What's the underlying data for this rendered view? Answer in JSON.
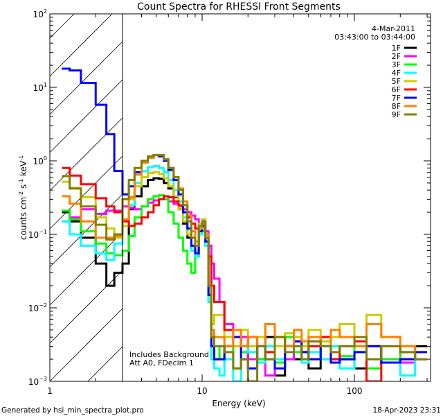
{
  "chart_data": {
    "type": "line",
    "title": "Count Spectra for RHESSI Front Segments",
    "xlabel": "Energy (keV)",
    "ylabel": "counts cm-2 s-1 keV-1",
    "ylabel_parts": [
      "counts cm",
      "-2",
      " s",
      "-1",
      " keV",
      "-1"
    ],
    "xscale": "log",
    "yscale": "log",
    "xlim": [
      1,
      316
    ],
    "ylim": [
      0.001,
      100
    ],
    "xticks": [
      {
        "value": 1,
        "label": "1"
      },
      {
        "value": 10,
        "label": "10"
      },
      {
        "value": 100,
        "label": "100"
      }
    ],
    "yticks": [
      {
        "value": 100,
        "base": "10",
        "exp": "2"
      },
      {
        "value": 10,
        "base": "10",
        "exp": "1"
      },
      {
        "value": 1,
        "base": "10",
        "exp": "0"
      },
      {
        "value": 0.1,
        "base": "10",
        "exp": "−1"
      },
      {
        "value": 0.01,
        "base": "10",
        "exp": "−2"
      },
      {
        "value": 0.001,
        "base": "10",
        "exp": "−3"
      }
    ],
    "legend_position": "top-right",
    "date": "4-Mar-2011",
    "time_range": "03:43:00 to 03:44:00",
    "hatched_region_keV": [
      1,
      3
    ],
    "annotations": [
      "Includes Background",
      "Att A0, FDecim 1"
    ],
    "energy_edges": [
      1.2,
      1.35,
      1.6,
      2.0,
      2.35,
      2.65,
      3.0,
      3.3,
      3.6,
      4.0,
      4.4,
      4.8,
      5.2,
      5.6,
      6.0,
      6.5,
      7.0,
      7.5,
      8.0,
      8.5,
      9.0,
      9.5,
      10,
      10.5,
      11,
      11.5,
      12,
      13,
      14,
      16,
      18,
      20,
      23,
      26,
      30,
      35,
      40,
      45,
      50,
      60,
      70,
      80,
      100,
      120,
      150,
      200,
      250,
      300
    ],
    "series": [
      {
        "name": "1F",
        "color": "#000000",
        "values": [
          0.2,
          0.15,
          0.09,
          0.04,
          0.02,
          0.03,
          0.04,
          0.22,
          0.33,
          0.45,
          0.55,
          0.58,
          0.57,
          0.5,
          0.42,
          0.32,
          0.22,
          0.14,
          0.09,
          0.06,
          0.05,
          0.1,
          0.12,
          0.08,
          0.015,
          0.003,
          0.002,
          0.002,
          0.003,
          0.0015,
          0.002,
          0.003,
          0.002,
          0.004,
          0.0012,
          0.003,
          0.002,
          0.0025,
          0.0015,
          0.003,
          0.002,
          0.002,
          0.0015,
          0.003,
          0.0018,
          0.002,
          0.003
        ]
      },
      {
        "name": "2F",
        "color": "#ff00ff",
        "values": [
          0.15,
          0.17,
          0.22,
          0.19,
          0.21,
          0.21,
          0.24,
          0.23,
          0.22,
          0.24,
          0.27,
          0.29,
          0.3,
          0.3,
          0.28,
          0.26,
          0.24,
          0.22,
          0.2,
          0.18,
          0.16,
          0.14,
          0.13,
          0.11,
          0.07,
          0.04,
          0.025,
          0.012,
          0.006,
          0.003,
          0.004,
          0.002,
          0.003,
          0.0012,
          0.004,
          0.002,
          0.003,
          0.002,
          0.0035,
          0.002,
          0.003,
          0.002,
          0.0025,
          0.003,
          0.002,
          0.0018,
          0.002
        ]
      },
      {
        "name": "3F",
        "color": "#00ff00",
        "values": [
          0.21,
          0.16,
          0.11,
          0.075,
          0.055,
          0.052,
          0.06,
          0.095,
          0.17,
          0.24,
          0.3,
          0.33,
          0.34,
          0.3,
          0.2,
          0.14,
          0.09,
          0.06,
          0.04,
          0.03,
          0.06,
          0.1,
          0.11,
          0.07,
          0.012,
          0.003,
          0.002,
          0.003,
          0.002,
          0.004,
          0.0025,
          0.003,
          0.002,
          0.003,
          0.0018,
          0.004,
          0.0025,
          0.003,
          0.002,
          0.0035,
          0.003,
          0.0022,
          0.003,
          0.0015,
          0.002,
          0.003,
          0.0025
        ]
      },
      {
        "name": "4F",
        "color": "#00ffff",
        "values": [
          0.15,
          0.1,
          0.07,
          0.055,
          0.045,
          0.075,
          0.13,
          0.25,
          0.5,
          0.72,
          0.82,
          0.85,
          0.8,
          0.7,
          0.55,
          0.4,
          0.28,
          0.17,
          0.1,
          0.06,
          0.05,
          0.1,
          0.12,
          0.07,
          0.012,
          0.002,
          0.0015,
          0.0012,
          0.002,
          0.001,
          0.003,
          0.0025,
          0.0018,
          0.003,
          0.002,
          0.0025,
          0.003,
          0.0018,
          0.0025,
          0.002,
          0.003,
          0.0015,
          0.0025,
          0.002,
          0.0018,
          0.0012,
          0.002
        ]
      },
      {
        "name": "5F",
        "color": "#cccc00",
        "values": [
          0.52,
          0.43,
          0.32,
          0.17,
          0.12,
          0.09,
          0.13,
          0.3,
          0.45,
          0.6,
          0.68,
          0.7,
          0.66,
          0.58,
          0.45,
          0.33,
          0.22,
          0.15,
          0.1,
          0.07,
          0.06,
          0.14,
          0.16,
          0.1,
          0.02,
          0.006,
          0.008,
          0.008,
          0.004,
          0.003,
          0.005,
          0.003,
          0.004,
          0.006,
          0.003,
          0.0045,
          0.004,
          0.003,
          0.005,
          0.0035,
          0.004,
          0.006,
          0.003,
          0.008,
          0.004,
          0.003,
          0.0025
        ]
      },
      {
        "name": "6F",
        "color": "#ff0000",
        "values": [
          0.8,
          0.63,
          0.48,
          0.31,
          0.24,
          0.2,
          0.15,
          0.13,
          0.14,
          0.17,
          0.2,
          0.25,
          0.3,
          0.33,
          0.32,
          0.28,
          0.25,
          0.2,
          0.17,
          0.14,
          0.12,
          0.12,
          0.14,
          0.1,
          0.05,
          0.02,
          0.012,
          0.012,
          0.005,
          0.004,
          0.003,
          0.004,
          0.003,
          0.0025,
          0.004,
          0.003,
          0.0035,
          0.0025,
          0.003,
          0.004,
          0.002,
          0.003,
          0.0035,
          0.001,
          0.003,
          0.0025,
          0.002
        ]
      },
      {
        "name": "7F",
        "color": "#0000ff",
        "values": [
          18,
          17,
          11.5,
          5.8,
          2.3,
          0.73,
          0.35,
          0.45,
          0.7,
          0.95,
          1.1,
          1.2,
          1.15,
          1.0,
          0.75,
          0.55,
          0.35,
          0.2,
          0.12,
          0.07,
          0.055,
          0.11,
          0.13,
          0.08,
          0.015,
          0.003,
          0.002,
          0.002,
          0.003,
          0.004,
          0.002,
          0.0015,
          0.003,
          0.002,
          0.0015,
          0.003,
          0.0035,
          0.0025,
          0.002,
          0.003,
          0.0018,
          0.002,
          0.0025,
          0.003,
          0.0018,
          0.002,
          0.0025
        ]
      },
      {
        "name": "8F",
        "color": "#ff8000",
        "values": [
          0.33,
          0.26,
          0.15,
          0.09,
          0.09,
          0.095,
          0.16,
          0.32,
          0.65,
          0.95,
          1.1,
          1.2,
          1.2,
          1.05,
          0.8,
          0.6,
          0.42,
          0.28,
          0.18,
          0.11,
          0.08,
          0.12,
          0.14,
          0.1,
          0.02,
          0.005,
          0.004,
          0.004,
          0.003,
          0.005,
          0.003,
          0.004,
          0.003,
          0.006,
          0.004,
          0.003,
          0.005,
          0.0035,
          0.004,
          0.003,
          0.005,
          0.004,
          0.003,
          0.006,
          0.004,
          0.003,
          0.002
        ]
      },
      {
        "name": "9F",
        "color": "#808000",
        "values": [
          0.62,
          0.42,
          0.24,
          0.135,
          0.085,
          0.1,
          0.3,
          0.55,
          0.8,
          1.0,
          1.15,
          1.2,
          1.2,
          1.05,
          0.8,
          0.6,
          0.4,
          0.25,
          0.15,
          0.09,
          0.07,
          0.13,
          0.15,
          0.09,
          0.02,
          0.004,
          0.003,
          0.003,
          0.0025,
          0.0015,
          0.002,
          0.001,
          0.003,
          0.002,
          0.004,
          0.0025,
          0.003,
          0.002,
          0.0035,
          0.003,
          0.0025,
          0.003,
          0.004,
          0.002,
          0.003,
          0.0025,
          0.002
        ]
      }
    ]
  },
  "footer": {
    "generated_by": "Generated by hsi_min_spectra_plot.pro",
    "timestamp": "18-Apr-2023 23:31"
  }
}
